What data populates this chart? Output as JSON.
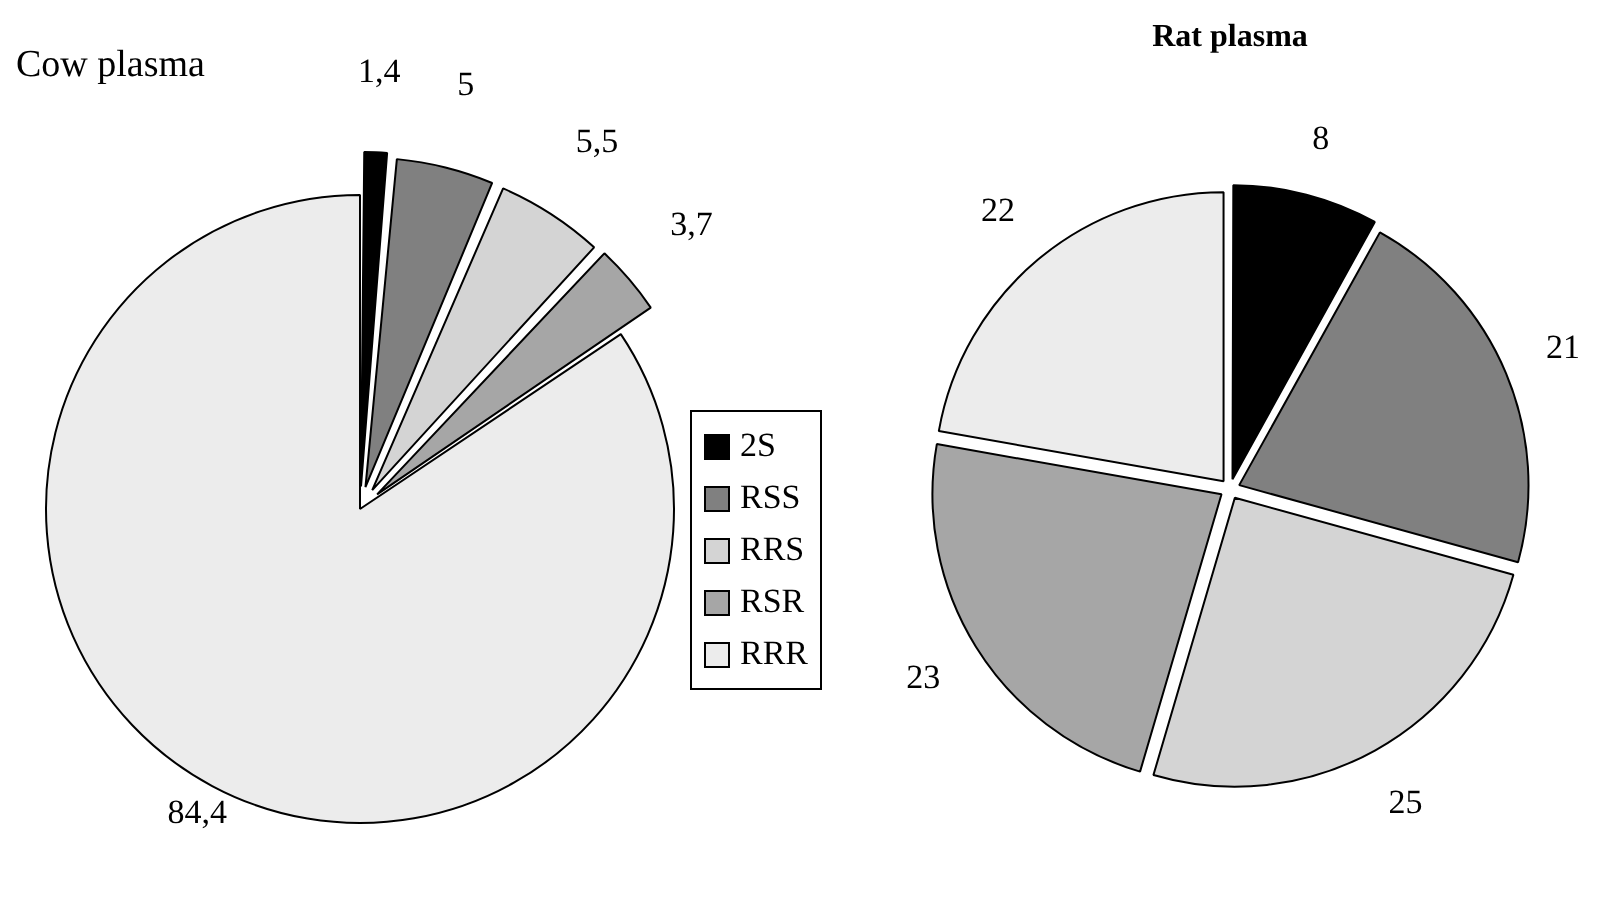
{
  "chart_data": [
    {
      "type": "pie",
      "title": "Cow plasma",
      "categories": [
        "2S",
        "RSS",
        "RRS",
        "RSR",
        "RRR"
      ],
      "values": [
        1.4,
        5,
        5.5,
        3.7,
        84.4
      ],
      "colors": [
        "#000000",
        "#808080",
        "#d4d4d4",
        "#a6a6a6",
        "#ececec"
      ],
      "value_labels": [
        "1,4",
        "5",
        "5,5",
        "3,7",
        "84,4"
      ],
      "legend": "right"
    },
    {
      "type": "pie",
      "title": "Rat plasma",
      "categories": [
        null,
        null,
        null,
        null,
        null
      ],
      "values": [
        8,
        21,
        25,
        23,
        22
      ],
      "colors": [
        "#000000",
        "#808080",
        "#d4d4d4",
        "#a6a6a6",
        "#ececec"
      ],
      "data_labels": true
    }
  ]
}
